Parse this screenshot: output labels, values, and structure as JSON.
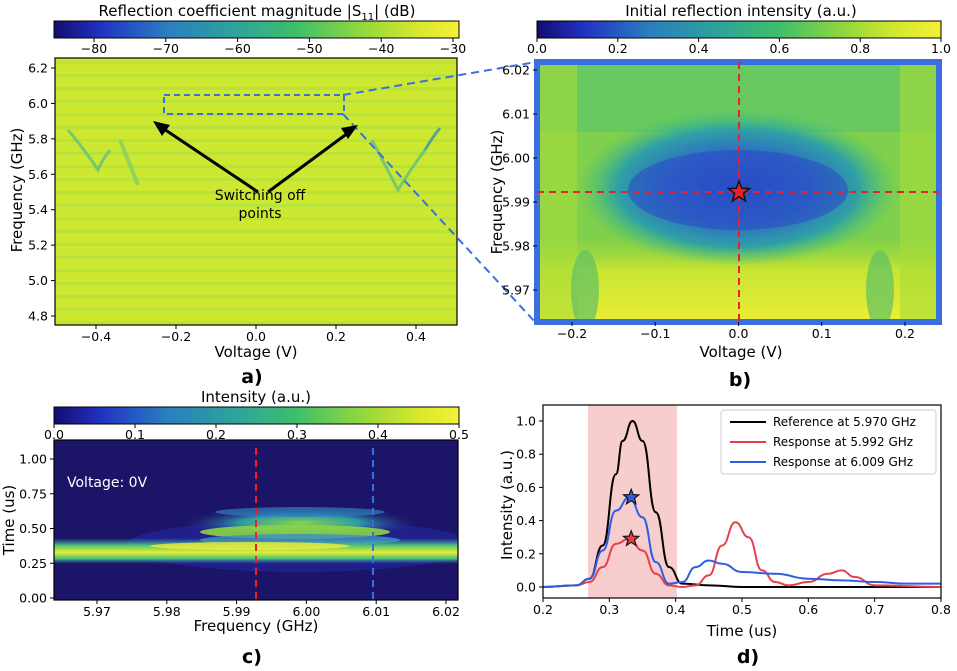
{
  "panels": {
    "a": {
      "label": "a)",
      "colorbar": {
        "title": "Reflection coefficient magnitude |S",
        "title_sub": "11",
        "title_tail": "| (dB)",
        "ticks": [
          "−80",
          "−70",
          "−60",
          "−50",
          "−40",
          "−30"
        ],
        "range": [
          -85,
          -30
        ]
      },
      "xlabel": "Voltage (V)",
      "ylabel": "Frequency (GHz)",
      "xticks": [
        "−0.4",
        "−0.2",
        "0.0",
        "0.2",
        "0.4"
      ],
      "yticks": [
        "4.8",
        "5.0",
        "5.2",
        "5.4",
        "5.6",
        "5.8",
        "6.0",
        "6.2"
      ],
      "annotation_line1": "Switching off",
      "annotation_line2": "points"
    },
    "b": {
      "label": "b)",
      "colorbar": {
        "title": "Initial reflection intensity (a.u.)",
        "ticks": [
          "0.0",
          "0.2",
          "0.4",
          "0.6",
          "0.8",
          "1.0"
        ]
      },
      "xlabel": "Voltage (V)",
      "ylabel": "Frequency (GHz)",
      "xticks": [
        "−0.2",
        "−0.1",
        "0.0",
        "0.1",
        "0.2"
      ],
      "yticks": [
        "5.97",
        "5.98",
        "5.99",
        "6.00",
        "6.01",
        "6.02"
      ]
    },
    "c": {
      "label": "c)",
      "colorbar": {
        "title": "Intensity (a.u.)",
        "ticks": [
          "0.0",
          "0.1",
          "0.2",
          "0.3",
          "0.4",
          "0.5"
        ]
      },
      "xlabel": "Frequency (GHz)",
      "ylabel": "Time (us)",
      "xticks": [
        "5.97",
        "5.98",
        "5.99",
        "6.00",
        "6.01",
        "6.02"
      ],
      "yticks": [
        "0.00",
        "0.25",
        "0.50",
        "0.75",
        "1.00"
      ],
      "inset_text": "Voltage: 0V"
    },
    "d": {
      "label": "d)",
      "xlabel": "Time (us)",
      "ylabel": "Intensity (a.u.)",
      "xticks": [
        "0.2",
        "0.3",
        "0.4",
        "0.5",
        "0.6",
        "0.7",
        "0.8"
      ],
      "yticks": [
        "0.0",
        "0.2",
        "0.4",
        "0.6",
        "0.8",
        "1.0"
      ],
      "legend": [
        "Reference at 5.970 GHz",
        "Response at 5.992 GHz",
        "Response at 6.009 GHz"
      ]
    }
  },
  "chart_data": [
    {
      "type": "heatmap",
      "title": "a)",
      "xlabel": "Voltage (V)",
      "ylabel": "Frequency (GHz)",
      "xlim": [
        -0.5,
        0.5
      ],
      "ylim": [
        4.75,
        6.25
      ],
      "colorbar_label": "Reflection coefficient magnitude |S11| (dB)",
      "zlim": [
        -85,
        -30
      ],
      "features": "Uniform background near -35 dB; V-shaped dips near V=±0.3 around 5.6-5.8 GHz; zoom box V -0.23..0.22, f 5.95..6.03 GHz",
      "annotations": [
        "Switching off points"
      ]
    },
    {
      "type": "heatmap",
      "title": "b)",
      "xlabel": "Voltage (V)",
      "ylabel": "Frequency (GHz)",
      "xlim": [
        -0.25,
        0.25
      ],
      "ylim": [
        5.965,
        6.022
      ],
      "colorbar_label": "Initial reflection intensity (a.u.)",
      "zlim": [
        0,
        1
      ],
      "markers": [
        {
          "voltage": 0.0,
          "frequency": 5.992,
          "shape": "star",
          "color": "#e8222b"
        }
      ],
      "crosshair": {
        "voltage": 0.0,
        "frequency": 5.992
      }
    },
    {
      "type": "heatmap",
      "title": "c)",
      "xlabel": "Frequency (GHz)",
      "ylabel": "Time (us)",
      "xlim": [
        5.962,
        6.022
      ],
      "ylim": [
        0.0,
        1.1
      ],
      "colorbar_label": "Intensity (a.u.)",
      "zlim": [
        0,
        0.5
      ],
      "vlines": [
        {
          "x": 5.992,
          "color": "#e8222b"
        },
        {
          "x": 6.009,
          "color": "#3b6fe0"
        }
      ],
      "features": "Bright band at t≈0.33 us across all frequencies; echoes at t≈0.43, 0.49, 0.57 us between 5.98-6.01 GHz"
    },
    {
      "type": "line",
      "title": "d)",
      "xlabel": "Time (us)",
      "ylabel": "Intensity (a.u.)",
      "xlim": [
        0.2,
        0.8
      ],
      "ylim": [
        -0.04,
        1.08
      ],
      "shaded_region": [
        0.268,
        0.402
      ],
      "series": [
        {
          "name": "Reference at 5.970 GHz",
          "color": "#000000",
          "x": [
            0.2,
            0.25,
            0.27,
            0.29,
            0.31,
            0.32,
            0.335,
            0.35,
            0.37,
            0.39,
            0.41,
            0.45,
            0.5,
            0.6,
            0.7,
            0.8
          ],
          "y": [
            0.0,
            0.01,
            0.05,
            0.25,
            0.68,
            0.88,
            1.0,
            0.88,
            0.45,
            0.12,
            0.02,
            0.01,
            0.0,
            0.0,
            0.0,
            0.0
          ]
        },
        {
          "name": "Response at 5.992 GHz",
          "color": "#e8404a",
          "x": [
            0.2,
            0.25,
            0.27,
            0.29,
            0.31,
            0.33,
            0.35,
            0.37,
            0.39,
            0.41,
            0.43,
            0.45,
            0.47,
            0.49,
            0.51,
            0.53,
            0.55,
            0.57,
            0.6,
            0.63,
            0.65,
            0.67,
            0.7,
            0.8
          ],
          "y": [
            0.0,
            0.01,
            0.03,
            0.12,
            0.26,
            0.29,
            0.22,
            0.08,
            0.01,
            0.0,
            0.01,
            0.07,
            0.25,
            0.39,
            0.3,
            0.1,
            0.03,
            0.01,
            0.03,
            0.08,
            0.1,
            0.06,
            0.01,
            0.0
          ]
        },
        {
          "name": "Response at 6.009 GHz",
          "color": "#2f5fe0",
          "x": [
            0.2,
            0.25,
            0.27,
            0.29,
            0.31,
            0.33,
            0.35,
            0.37,
            0.39,
            0.41,
            0.43,
            0.45,
            0.47,
            0.5,
            0.55,
            0.6,
            0.65,
            0.7,
            0.75,
            0.8
          ],
          "y": [
            0.0,
            0.01,
            0.05,
            0.22,
            0.46,
            0.54,
            0.42,
            0.15,
            0.02,
            0.03,
            0.12,
            0.16,
            0.14,
            0.09,
            0.08,
            0.05,
            0.04,
            0.03,
            0.02,
            0.02
          ]
        }
      ],
      "markers": [
        {
          "x": 0.333,
          "y": 0.54,
          "shape": "star",
          "color": "#2f5fe0"
        },
        {
          "x": 0.333,
          "y": 0.29,
          "shape": "star",
          "color": "#e8404a"
        }
      ]
    }
  ]
}
